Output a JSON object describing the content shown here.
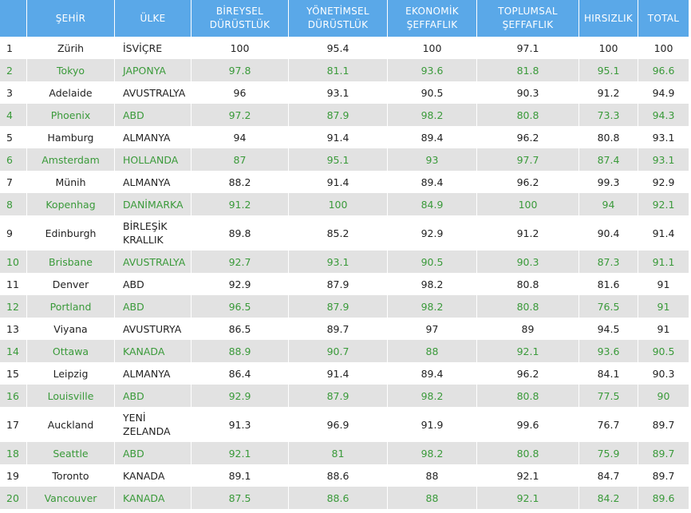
{
  "headers": {
    "no": "",
    "city": "ŞEHİR",
    "country": "ÜLKE",
    "individual": "BİREYSEL DÜRÜSTLÜK",
    "administrative": "YÖNETİMSEL DÜRÜSTLÜK",
    "economic": "EKONOMİK ŞEFFAFLIK",
    "social": "TOPLUMSAL ŞEFFAFLIK",
    "theft": "HIRSIZLIK",
    "total": "TOTAL"
  },
  "rows": [
    {
      "no": "1",
      "city": "Zürih",
      "country": "İSVİÇRE",
      "individual": "100",
      "administrative": "95.4",
      "economic": "100",
      "social": "97.1",
      "theft": "100",
      "total": "100"
    },
    {
      "no": "2",
      "city": "Tokyo",
      "country": "JAPONYA",
      "individual": "97.8",
      "administrative": "81.1",
      "economic": "93.6",
      "social": "81.8",
      "theft": "95.1",
      "total": "96.6"
    },
    {
      "no": "3",
      "city": "Adelaide",
      "country": "AVUSTRALYA",
      "individual": "96",
      "administrative": "93.1",
      "economic": "90.5",
      "social": "90.3",
      "theft": "91.2",
      "total": "94.9"
    },
    {
      "no": "4",
      "city": "Phoenix",
      "country": "ABD",
      "individual": "97.2",
      "administrative": "87.9",
      "economic": "98.2",
      "social": "80.8",
      "theft": "73.3",
      "total": "94.3"
    },
    {
      "no": "5",
      "city": "Hamburg",
      "country": "ALMANYA",
      "individual": "94",
      "administrative": "91.4",
      "economic": "89.4",
      "social": "96.2",
      "theft": "80.8",
      "total": "93.1"
    },
    {
      "no": "6",
      "city": "Amsterdam",
      "country": "HOLLANDA",
      "individual": "87",
      "administrative": "95.1",
      "economic": "93",
      "social": "97.7",
      "theft": "87.4",
      "total": "93.1"
    },
    {
      "no": "7",
      "city": "Münih",
      "country": "ALMANYA",
      "individual": "88.2",
      "administrative": "91.4",
      "economic": "89.4",
      "social": "96.2",
      "theft": "99.3",
      "total": "92.9"
    },
    {
      "no": "8",
      "city": "Kopenhag",
      "country": "DANİMARKA",
      "individual": "91.2",
      "administrative": "100",
      "economic": "84.9",
      "social": "100",
      "theft": "94",
      "total": "92.1"
    },
    {
      "no": "9",
      "city": "Edinburgh",
      "country": "BİRLEŞİK KRALLIK",
      "individual": "89.8",
      "administrative": "85.2",
      "economic": "92.9",
      "social": "91.2",
      "theft": "90.4",
      "total": "91.4"
    },
    {
      "no": "10",
      "city": "Brisbane",
      "country": "AVUSTRALYA",
      "individual": "92.7",
      "administrative": "93.1",
      "economic": "90.5",
      "social": "90.3",
      "theft": "87.3",
      "total": "91.1"
    },
    {
      "no": "11",
      "city": "Denver",
      "country": "ABD",
      "individual": "92.9",
      "administrative": "87.9",
      "economic": "98.2",
      "social": "80.8",
      "theft": "81.6",
      "total": "91"
    },
    {
      "no": "12",
      "city": "Portland",
      "country": "ABD",
      "individual": "96.5",
      "administrative": "87.9",
      "economic": "98.2",
      "social": "80.8",
      "theft": "76.5",
      "total": "91"
    },
    {
      "no": "13",
      "city": "Viyana",
      "country": "AVUSTURYA",
      "individual": "86.5",
      "administrative": "89.7",
      "economic": "97",
      "social": "89",
      "theft": "94.5",
      "total": "91"
    },
    {
      "no": "14",
      "city": "Ottawa",
      "country": "KANADA",
      "individual": "88.9",
      "administrative": "90.7",
      "economic": "88",
      "social": "92.1",
      "theft": "93.6",
      "total": "90.5"
    },
    {
      "no": "15",
      "city": "Leipzig",
      "country": "ALMANYA",
      "individual": "86.4",
      "administrative": "91.4",
      "economic": "89.4",
      "social": "96.2",
      "theft": "84.1",
      "total": "90.3"
    },
    {
      "no": "16",
      "city": "Louisville",
      "country": "ABD",
      "individual": "92.9",
      "administrative": "87.9",
      "economic": "98.2",
      "social": "80.8",
      "theft": "77.5",
      "total": "90"
    },
    {
      "no": "17",
      "city": "Auckland",
      "country": "YENİ ZELANDA",
      "individual": "91.3",
      "administrative": "96.9",
      "economic": "91.9",
      "social": "99.6",
      "theft": "76.7",
      "total": "89.7"
    },
    {
      "no": "18",
      "city": "Seattle",
      "country": "ABD",
      "individual": "92.1",
      "administrative": "81",
      "economic": "98.2",
      "social": "80.8",
      "theft": "75.9",
      "total": "89.7"
    },
    {
      "no": "19",
      "city": "Toronto",
      "country": "KANADA",
      "individual": "89.1",
      "administrative": "88.6",
      "economic": "88",
      "social": "92.1",
      "theft": "84.7",
      "total": "89.7"
    },
    {
      "no": "20",
      "city": "Vancouver",
      "country": "KANADA",
      "individual": "87.5",
      "administrative": "88.6",
      "economic": "88",
      "social": "92.1",
      "theft": "84.2",
      "total": "89.6"
    }
  ]
}
